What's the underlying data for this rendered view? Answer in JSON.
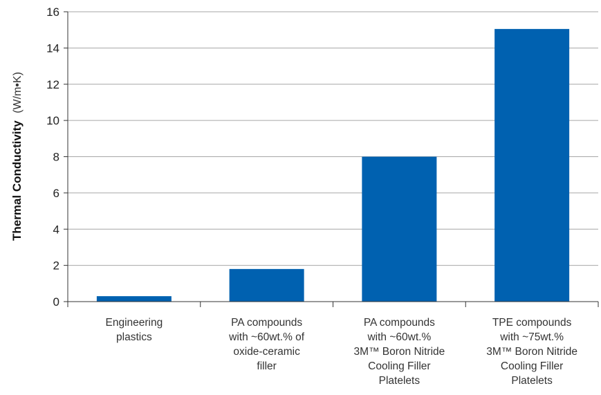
{
  "chart_data": {
    "type": "bar",
    "categories": [
      [
        "Engineering",
        "plastics"
      ],
      [
        "PA compounds",
        "with ~60wt.% of",
        "oxide-ceramic",
        "filler"
      ],
      [
        "PA compounds",
        "with ~60wt.%",
        "3M™ Boron Nitride",
        "Cooling Filler",
        "Platelets"
      ],
      [
        "TPE compounds",
        "with ~75wt.%",
        "3M™ Boron Nitride",
        "Cooling Filler",
        "Platelets"
      ]
    ],
    "values": [
      0.3,
      1.8,
      8.0,
      15.05
    ],
    "ylabel": "Thermal Conductivity",
    "ylabel_unit": "(W/m•K)",
    "ylim": [
      0,
      16
    ],
    "yticks": [
      "0",
      "2",
      "4",
      "6",
      "8",
      "10",
      "12",
      "14",
      "16"
    ],
    "grid": true,
    "bar_color": "#0061b0",
    "grid_color": "#a6a6a6"
  }
}
